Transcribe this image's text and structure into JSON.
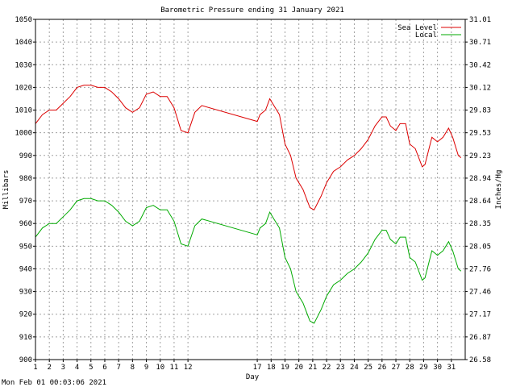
{
  "footer": {
    "timestamp": "Mon Feb 01 00:03:06 2021"
  },
  "chart_data": {
    "type": "line",
    "title": "Barometric Pressure ending 31 January 2021",
    "xlabel": "Day",
    "ylabel": "Millibars",
    "y2label": "Inches/Hg",
    "xlim": [
      1,
      32
    ],
    "ylim": [
      900,
      1050
    ],
    "y2lim": [
      26.58,
      31.01
    ],
    "grid": true,
    "legend_position": "top-right",
    "x_ticks": [
      "1",
      "2",
      "3",
      "4",
      "5",
      "6",
      "7",
      "8",
      "9",
      "10",
      "11",
      "12",
      "17",
      "18",
      "19",
      "20",
      "21",
      "22",
      "23",
      "24",
      "25",
      "26",
      "27",
      "28",
      "29",
      "30",
      "31"
    ],
    "x_tick_values": [
      1,
      2,
      3,
      4,
      5,
      6,
      7,
      8,
      9,
      10,
      11,
      12,
      17,
      18,
      19,
      20,
      21,
      22,
      23,
      24,
      25,
      26,
      27,
      28,
      29,
      30,
      31
    ],
    "y_ticks": [
      900,
      910,
      920,
      930,
      940,
      950,
      960,
      970,
      980,
      990,
      1000,
      1010,
      1020,
      1030,
      1040,
      1050
    ],
    "y2_ticks": [
      "26.58",
      "26.87",
      "27.17",
      "27.46",
      "27.76",
      "28.05",
      "28.35",
      "28.64",
      "28.94",
      "29.23",
      "29.53",
      "29.83",
      "30.12",
      "30.42",
      "30.71",
      "31.01"
    ],
    "series": [
      {
        "name": "Sea Level",
        "color": "#dd0000",
        "points": [
          [
            1,
            1004
          ],
          [
            1.5,
            1008
          ],
          [
            2,
            1010
          ],
          [
            2.5,
            1010
          ],
          [
            3,
            1013
          ],
          [
            3.5,
            1016
          ],
          [
            4,
            1020
          ],
          [
            4.5,
            1021
          ],
          [
            5,
            1021
          ],
          [
            5.5,
            1020
          ],
          [
            6,
            1020
          ],
          [
            6.5,
            1018
          ],
          [
            7,
            1015
          ],
          [
            7.5,
            1011
          ],
          [
            8,
            1009
          ],
          [
            8.5,
            1011
          ],
          [
            9,
            1017
          ],
          [
            9.5,
            1018
          ],
          [
            10,
            1016
          ],
          [
            10.5,
            1016
          ],
          [
            11,
            1011
          ],
          [
            11.5,
            1001
          ],
          [
            12,
            1000
          ],
          [
            12.5,
            1009
          ],
          [
            13,
            1012
          ],
          [
            17,
            1005
          ],
          [
            17.2,
            1008
          ],
          [
            17.6,
            1010
          ],
          [
            17.9,
            1015
          ],
          [
            18.2,
            1012
          ],
          [
            18.6,
            1008
          ],
          [
            19,
            995
          ],
          [
            19.4,
            990
          ],
          [
            19.8,
            980
          ],
          [
            20.3,
            975
          ],
          [
            20.8,
            967
          ],
          [
            21.1,
            966
          ],
          [
            21.6,
            972
          ],
          [
            22,
            978
          ],
          [
            22.5,
            983
          ],
          [
            23,
            985
          ],
          [
            23.5,
            988
          ],
          [
            24,
            990
          ],
          [
            24.5,
            993
          ],
          [
            25,
            997
          ],
          [
            25.5,
            1003
          ],
          [
            26,
            1007
          ],
          [
            26.3,
            1007
          ],
          [
            26.6,
            1003
          ],
          [
            27,
            1001
          ],
          [
            27.3,
            1004
          ],
          [
            27.7,
            1004
          ],
          [
            28,
            995
          ],
          [
            28.4,
            993
          ],
          [
            28.9,
            985
          ],
          [
            29.1,
            986
          ],
          [
            29.6,
            998
          ],
          [
            30,
            996
          ],
          [
            30.4,
            998
          ],
          [
            30.8,
            1002
          ],
          [
            31.1,
            998
          ],
          [
            31.5,
            990
          ],
          [
            31.7,
            989
          ]
        ]
      },
      {
        "name": "Local",
        "color": "#00aa00",
        "points": [
          [
            1,
            954
          ],
          [
            1.5,
            958
          ],
          [
            2,
            960
          ],
          [
            2.5,
            960
          ],
          [
            3,
            963
          ],
          [
            3.5,
            966
          ],
          [
            4,
            970
          ],
          [
            4.5,
            971
          ],
          [
            5,
            971
          ],
          [
            5.5,
            970
          ],
          [
            6,
            970
          ],
          [
            6.5,
            968
          ],
          [
            7,
            965
          ],
          [
            7.5,
            961
          ],
          [
            8,
            959
          ],
          [
            8.5,
            961
          ],
          [
            9,
            967
          ],
          [
            9.5,
            968
          ],
          [
            10,
            966
          ],
          [
            10.5,
            966
          ],
          [
            11,
            961
          ],
          [
            11.5,
            951
          ],
          [
            12,
            950
          ],
          [
            12.5,
            959
          ],
          [
            13,
            962
          ],
          [
            17,
            955
          ],
          [
            17.2,
            958
          ],
          [
            17.6,
            960
          ],
          [
            17.9,
            965
          ],
          [
            18.2,
            962
          ],
          [
            18.6,
            958
          ],
          [
            19,
            945
          ],
          [
            19.4,
            940
          ],
          [
            19.8,
            930
          ],
          [
            20.3,
            925
          ],
          [
            20.8,
            917
          ],
          [
            21.1,
            916
          ],
          [
            21.6,
            922
          ],
          [
            22,
            928
          ],
          [
            22.5,
            933
          ],
          [
            23,
            935
          ],
          [
            23.5,
            938
          ],
          [
            24,
            940
          ],
          [
            24.5,
            943
          ],
          [
            25,
            947
          ],
          [
            25.5,
            953
          ],
          [
            26,
            957
          ],
          [
            26.3,
            957
          ],
          [
            26.6,
            953
          ],
          [
            27,
            951
          ],
          [
            27.3,
            954
          ],
          [
            27.7,
            954
          ],
          [
            28,
            945
          ],
          [
            28.4,
            943
          ],
          [
            28.9,
            935
          ],
          [
            29.1,
            936
          ],
          [
            29.6,
            948
          ],
          [
            30,
            946
          ],
          [
            30.4,
            948
          ],
          [
            30.8,
            952
          ],
          [
            31.1,
            948
          ],
          [
            31.5,
            940
          ],
          [
            31.7,
            939
          ]
        ]
      }
    ]
  }
}
